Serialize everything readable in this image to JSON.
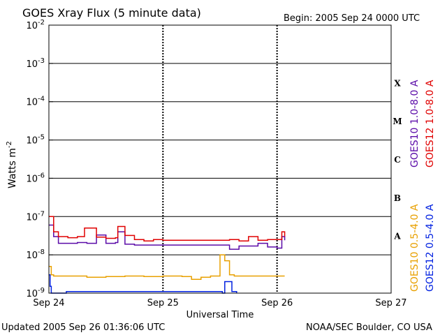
{
  "chart_data": {
    "type": "line",
    "title": "GOES Xray Flux (5 minute data)",
    "begin_label": "Begin:  2005 Sep 24 0000 UTC",
    "ylabel": "Watts m",
    "ylabel_sup": "-2",
    "xlabel": "Universal Time",
    "yscale": "log",
    "ylim": [
      1e-09,
      0.01
    ],
    "xlim": [
      "2005-09-24 00:00",
      "2005-09-27 00:00"
    ],
    "x_ticks": [
      "Sep 24",
      "Sep 25",
      "Sep 26",
      "Sep 27"
    ],
    "y_ticks": [
      {
        "base": "10",
        "exp": "-2"
      },
      {
        "base": "10",
        "exp": "-3"
      },
      {
        "base": "10",
        "exp": "-4"
      },
      {
        "base": "10",
        "exp": "-5"
      },
      {
        "base": "10",
        "exp": "-6"
      },
      {
        "base": "10",
        "exp": "-7"
      },
      {
        "base": "10",
        "exp": "-8"
      },
      {
        "base": "10",
        "exp": "-9"
      }
    ],
    "flare_classes": [
      "X",
      "M",
      "C",
      "B",
      "A"
    ],
    "grid": "horizontal at each decade, dashed vertical at day boundaries",
    "series": [
      {
        "name": "GOES10 1.0-8.0 A",
        "color": "#5a0aa8",
        "x": [
          "2005-09-24 00:00",
          "2005-09-24 01:00",
          "2005-09-24 02:00",
          "2005-09-24 04:00",
          "2005-09-24 06:00",
          "2005-09-24 08:00",
          "2005-09-24 10:00",
          "2005-09-24 12:00",
          "2005-09-24 14:00",
          "2005-09-24 14:30",
          "2005-09-24 16:00",
          "2005-09-24 18:00",
          "2005-09-24 20:00",
          "2005-09-24 22:00",
          "2005-09-25 00:00",
          "2005-09-25 04:00",
          "2005-09-25 08:00",
          "2005-09-25 12:00",
          "2005-09-25 14:00",
          "2005-09-25 16:00",
          "2005-09-25 18:00",
          "2005-09-25 20:00",
          "2005-09-25 22:00",
          "2005-09-26 00:00",
          "2005-09-26 01:00",
          "2005-09-26 01:36"
        ],
        "y": [
          6e-08,
          3e-08,
          2e-08,
          2e-08,
          2.1e-08,
          2e-08,
          3.3e-08,
          2e-08,
          2.1e-08,
          4e-08,
          1.9e-08,
          1.8e-08,
          1.8e-08,
          1.8e-08,
          1.8e-08,
          1.8e-08,
          1.8e-08,
          1.8e-08,
          1.4e-08,
          1.7e-08,
          1.7e-08,
          2e-08,
          1.6e-08,
          1.5e-08,
          3e-08,
          2.4e-08
        ]
      },
      {
        "name": "GOES12 1.0-8.0 A",
        "color": "#e00000",
        "x": [
          "2005-09-24 00:00",
          "2005-09-24 01:00",
          "2005-09-24 02:00",
          "2005-09-24 04:00",
          "2005-09-24 06:00",
          "2005-09-24 07:30",
          "2005-09-24 10:00",
          "2005-09-24 12:00",
          "2005-09-24 14:00",
          "2005-09-24 14:30",
          "2005-09-24 16:00",
          "2005-09-24 18:00",
          "2005-09-24 20:00",
          "2005-09-24 22:00",
          "2005-09-25 00:00",
          "2005-09-25 04:00",
          "2005-09-25 08:00",
          "2005-09-25 12:00",
          "2005-09-25 14:00",
          "2005-09-25 16:00",
          "2005-09-25 18:00",
          "2005-09-25 20:00",
          "2005-09-25 22:00",
          "2005-09-26 00:00",
          "2005-09-26 01:00",
          "2005-09-26 01:36"
        ],
        "y": [
          1e-07,
          4e-08,
          3e-08,
          2.8e-08,
          3e-08,
          5e-08,
          2.9e-08,
          2.7e-08,
          2.8e-08,
          5.5e-08,
          3.2e-08,
          2.5e-08,
          2.3e-08,
          2.5e-08,
          2.4e-08,
          2.4e-08,
          2.4e-08,
          2.4e-08,
          2.5e-08,
          2.3e-08,
          3e-08,
          2.4e-08,
          2.5e-08,
          2.5e-08,
          4e-08,
          3e-08
        ]
      },
      {
        "name": "GOES10 0.5-4.0 A",
        "color": "#e8a000",
        "x": [
          "2005-09-24 00:00",
          "2005-09-24 00:30",
          "2005-09-24 01:00",
          "2005-09-24 04:00",
          "2005-09-24 08:00",
          "2005-09-24 12:00",
          "2005-09-24 16:00",
          "2005-09-24 20:00",
          "2005-09-25 00:00",
          "2005-09-25 04:00",
          "2005-09-25 06:00",
          "2005-09-25 08:00",
          "2005-09-25 10:00",
          "2005-09-25 12:00",
          "2005-09-25 13:00",
          "2005-09-25 14:00",
          "2005-09-25 15:00",
          "2005-09-25 16:00",
          "2005-09-25 18:00",
          "2005-09-25 20:00",
          "2005-09-25 22:00",
          "2005-09-26 00:00",
          "2005-09-26 01:36"
        ],
        "y": [
          5e-09,
          3e-09,
          2.8e-09,
          2.8e-09,
          2.6e-09,
          2.7e-09,
          2.8e-09,
          2.7e-09,
          2.8e-09,
          2.7e-09,
          2.3e-09,
          2.6e-09,
          2.8e-09,
          1e-08,
          7e-09,
          3e-09,
          2.8e-09,
          2.8e-09,
          2.8e-09,
          2.8e-09,
          2.8e-09,
          2.8e-09,
          2.8e-09
        ]
      },
      {
        "name": "GOES12 0.5-4.0 A",
        "color": "#0020e0",
        "x": [
          "2005-09-24 00:00",
          "2005-09-24 00:15",
          "2005-09-24 00:30",
          "2005-09-24 03:30",
          "2005-09-24 03:40",
          "2005-09-25 12:30",
          "2005-09-25 13:00",
          "2005-09-25 14:00",
          "2005-09-25 14:30",
          "2005-09-25 15:30"
        ],
        "y": [
          3e-09,
          1.5e-09,
          1e-09,
          1e-09,
          1.1e-09,
          1e-09,
          2e-09,
          2e-09,
          1.1e-09,
          1e-09
        ]
      }
    ]
  },
  "footer": {
    "updated": "Updated 2005 Sep 26 01:36:06 UTC",
    "credit": "NOAA/SEC Boulder, CO USA"
  }
}
